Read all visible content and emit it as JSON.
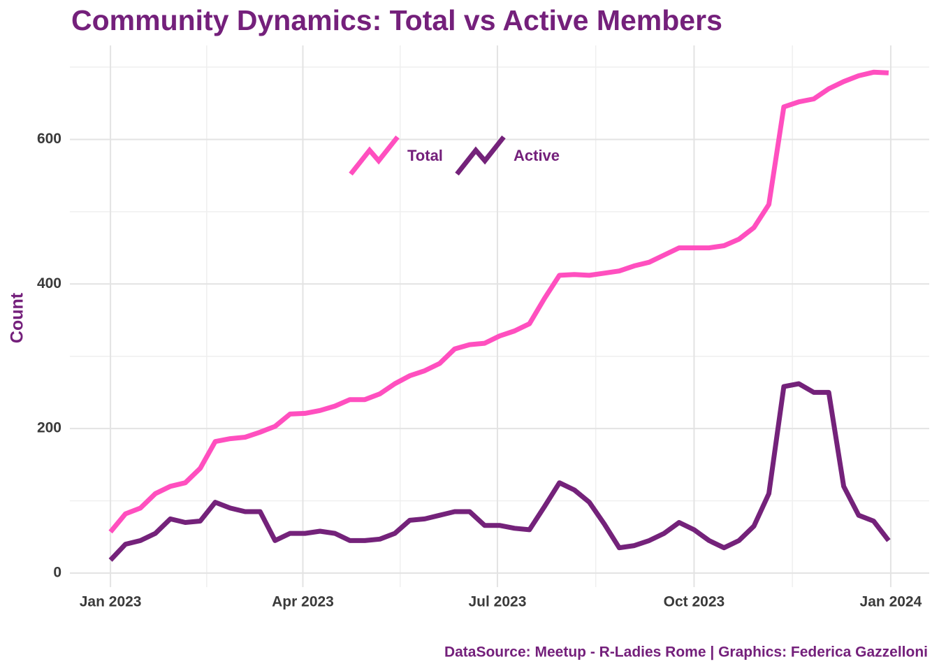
{
  "chart_data": {
    "type": "line",
    "title": "Community Dynamics: Total vs Active Members",
    "y_label": "Count",
    "caption": "DataSource: Meetup - R-Ladies Rome | Graphics: Federica Gazzelloni",
    "x": [
      "2023-01-01",
      "2023-01-08",
      "2023-01-15",
      "2023-01-22",
      "2023-01-29",
      "2023-02-05",
      "2023-02-12",
      "2023-02-19",
      "2023-02-26",
      "2023-03-05",
      "2023-03-12",
      "2023-03-19",
      "2023-03-26",
      "2023-04-02",
      "2023-04-09",
      "2023-04-16",
      "2023-04-23",
      "2023-04-30",
      "2023-05-07",
      "2023-05-14",
      "2023-05-21",
      "2023-05-28",
      "2023-06-04",
      "2023-06-11",
      "2023-06-18",
      "2023-06-25",
      "2023-07-02",
      "2023-07-09",
      "2023-07-16",
      "2023-07-23",
      "2023-07-30",
      "2023-08-06",
      "2023-08-13",
      "2023-08-20",
      "2023-08-27",
      "2023-09-03",
      "2023-09-10",
      "2023-09-17",
      "2023-09-24",
      "2023-10-01",
      "2023-10-08",
      "2023-10-15",
      "2023-10-22",
      "2023-10-29",
      "2023-11-05",
      "2023-11-12",
      "2023-11-19",
      "2023-11-26",
      "2023-12-03",
      "2023-12-10",
      "2023-12-17",
      "2023-12-24",
      "2023-12-31"
    ],
    "series": [
      {
        "name": "Total",
        "color": "#ff4fbf",
        "values": [
          57,
          82,
          90,
          110,
          120,
          125,
          145,
          182,
          186,
          188,
          195,
          203,
          220,
          221,
          225,
          231,
          240,
          240,
          248,
          262,
          273,
          280,
          290,
          310,
          316,
          318,
          328,
          335,
          345,
          380,
          412,
          413,
          412,
          415,
          418,
          425,
          430,
          440,
          450,
          450,
          450,
          453,
          462,
          478,
          510,
          645,
          652,
          656,
          670,
          680,
          688,
          693,
          692
        ]
      },
      {
        "name": "Active",
        "color": "#74227a",
        "values": [
          18,
          40,
          45,
          55,
          75,
          70,
          72,
          98,
          90,
          85,
          85,
          45,
          55,
          55,
          58,
          55,
          45,
          45,
          47,
          55,
          73,
          75,
          80,
          85,
          85,
          66,
          66,
          62,
          60,
          92,
          125,
          115,
          98,
          68,
          35,
          38,
          45,
          55,
          70,
          60,
          45,
          35,
          45,
          65,
          110,
          258,
          262,
          250,
          250,
          120,
          80,
          72,
          45
        ]
      }
    ],
    "xlim": [
      "2022-12-13",
      "2024-01-19"
    ],
    "xticks": [
      {
        "value": "2023-01-01",
        "label": "Jan 2023"
      },
      {
        "value": "2023-04-01",
        "label": "Apr 2023"
      },
      {
        "value": "2023-07-01",
        "label": "Jul 2023"
      },
      {
        "value": "2023-10-01",
        "label": "Oct 2023"
      },
      {
        "value": "2024-01-01",
        "label": "Jan 2024"
      }
    ],
    "ylim": [
      -19.4,
      730
    ],
    "yticks": [
      0,
      200,
      400,
      600
    ],
    "grid": true,
    "legend_position": "top"
  }
}
